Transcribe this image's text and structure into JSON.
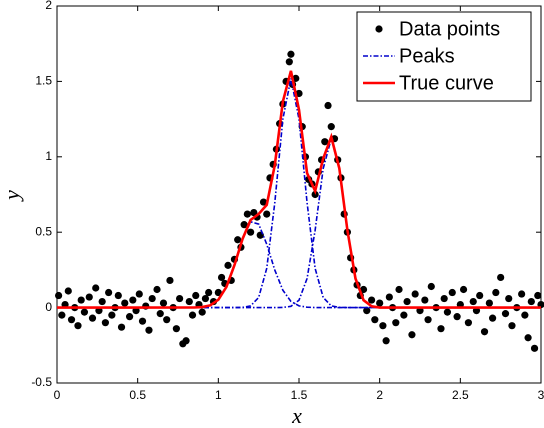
{
  "chart_data": {
    "type": "scatter",
    "xlabel": "x",
    "ylabel": "y",
    "xlim": [
      0,
      3
    ],
    "xticks": [
      0,
      0.5,
      1,
      1.5,
      2,
      2.5,
      3
    ],
    "ylim": [
      -0.5,
      2
    ],
    "yticks": [
      -0.5,
      0,
      0.5,
      1,
      1.5,
      2
    ],
    "legend": "upper right",
    "series": [
      {
        "name": "Data points",
        "color": "#000000",
        "style": "markers",
        "x": [
          0.01,
          0.03,
          0.05,
          0.07,
          0.09,
          0.11,
          0.13,
          0.15,
          0.17,
          0.2,
          0.22,
          0.24,
          0.26,
          0.28,
          0.3,
          0.32,
          0.34,
          0.36,
          0.38,
          0.4,
          0.42,
          0.45,
          0.47,
          0.49,
          0.51,
          0.53,
          0.55,
          0.57,
          0.59,
          0.62,
          0.64,
          0.66,
          0.68,
          0.7,
          0.72,
          0.74,
          0.76,
          0.78,
          0.8,
          0.82,
          0.84,
          0.86,
          0.88,
          0.9,
          0.92,
          0.94,
          0.97,
          1.0,
          1.02,
          1.04,
          1.06,
          1.08,
          1.1,
          1.12,
          1.14,
          1.16,
          1.18,
          1.2,
          1.22,
          1.24,
          1.26,
          1.28,
          1.3,
          1.32,
          1.34,
          1.36,
          1.38,
          1.4,
          1.42,
          1.44,
          1.45,
          1.46,
          1.48,
          1.5,
          1.52,
          1.54,
          1.56,
          1.58,
          1.6,
          1.62,
          1.64,
          1.66,
          1.68,
          1.7,
          1.72,
          1.74,
          1.76,
          1.78,
          1.8,
          1.82,
          1.84,
          1.86,
          1.88,
          1.9,
          1.92,
          1.95,
          1.97,
          2.0,
          2.02,
          2.04,
          2.06,
          2.08,
          2.1,
          2.12,
          2.15,
          2.17,
          2.2,
          2.22,
          2.25,
          2.28,
          2.3,
          2.32,
          2.35,
          2.38,
          2.4,
          2.42,
          2.45,
          2.48,
          2.5,
          2.52,
          2.55,
          2.58,
          2.6,
          2.62,
          2.65,
          2.68,
          2.7,
          2.72,
          2.75,
          2.78,
          2.8,
          2.82,
          2.85,
          2.88,
          2.9,
          2.92,
          2.94,
          2.96,
          2.98,
          3.0
        ],
        "values": [
          0.08,
          -0.05,
          0.02,
          0.11,
          -0.08,
          0.0,
          -0.12,
          0.05,
          -0.03,
          0.07,
          -0.07,
          0.13,
          -0.02,
          0.04,
          -0.1,
          0.1,
          -0.05,
          0.0,
          0.08,
          -0.13,
          0.03,
          -0.06,
          0.05,
          -0.02,
          0.09,
          -0.09,
          0.01,
          -0.15,
          0.06,
          0.12,
          -0.04,
          0.03,
          -0.08,
          0.18,
          0.0,
          -0.14,
          0.06,
          -0.24,
          -0.22,
          0.04,
          -0.05,
          0.08,
          0.02,
          -0.03,
          0.06,
          0.1,
          0.04,
          0.1,
          0.2,
          0.16,
          0.28,
          0.18,
          0.32,
          0.45,
          0.4,
          0.55,
          0.62,
          0.5,
          0.63,
          0.6,
          0.48,
          0.7,
          0.62,
          0.86,
          0.95,
          1.05,
          1.22,
          1.35,
          1.5,
          1.63,
          1.68,
          1.48,
          1.52,
          1.42,
          1.2,
          1.0,
          0.85,
          0.82,
          0.75,
          0.9,
          0.98,
          1.1,
          1.34,
          1.2,
          1.12,
          0.98,
          0.86,
          0.62,
          0.5,
          0.33,
          0.25,
          0.15,
          0.08,
          0.12,
          -0.02,
          0.05,
          -0.08,
          0.03,
          -0.12,
          -0.22,
          0.07,
          0.0,
          -0.1,
          0.12,
          -0.05,
          0.04,
          -0.18,
          0.09,
          -0.02,
          0.05,
          -0.08,
          0.14,
          0.0,
          -0.14,
          0.06,
          -0.03,
          0.1,
          -0.06,
          0.02,
          0.12,
          -0.1,
          0.04,
          -0.02,
          0.08,
          -0.16,
          0.03,
          -0.07,
          0.1,
          0.2,
          -0.04,
          0.06,
          -0.12,
          0.0,
          0.09,
          -0.05,
          -0.2,
          0.04,
          -0.27,
          0.08,
          0.02
        ]
      },
      {
        "name": "Peaks",
        "color": "#0000cc",
        "style": "dashdot",
        "x": [
          0,
          0.85,
          0.9,
          0.95,
          1.0,
          1.05,
          1.1,
          1.15,
          1.2,
          1.25,
          1.3,
          1.35,
          1.4,
          1.45,
          1.5,
          1.55,
          1.6,
          1.65,
          1.7,
          1.75,
          1.8,
          1.85,
          1.9,
          1.95,
          2.0,
          3
        ],
        "values": [
          [
            0,
            0.0006,
            0.0035,
            0.015,
            0.052,
            0.137,
            0.282,
            0.454,
            0.569,
            0.554,
            0.42,
            0.249,
            0.115,
            0.041,
            0.0115,
            0.0025,
            0.0004,
            0,
            0,
            0,
            0,
            0,
            0,
            0,
            0,
            0
          ],
          [
            0,
            0,
            0,
            0,
            0,
            0,
            0.0001,
            0.0013,
            0.0115,
            0.067,
            0.26,
            0.696,
            1.25,
            1.52,
            1.25,
            0.696,
            0.26,
            0.067,
            0.0115,
            0.0013,
            0.0001,
            0,
            0,
            0,
            0,
            0
          ],
          [
            0,
            0,
            0,
            0,
            0,
            0,
            0,
            0,
            0,
            0,
            0,
            0,
            0.001,
            0.0085,
            0.049,
            0.193,
            0.513,
            0.922,
            1.12,
            0.922,
            0.513,
            0.193,
            0.049,
            0.0085,
            0.0001,
            0
          ]
        ]
      },
      {
        "name": "True curve",
        "color": "#ff0000",
        "style": "solid",
        "x": [
          0,
          0.85,
          0.9,
          0.95,
          1.0,
          1.05,
          1.1,
          1.15,
          1.2,
          1.25,
          1.3,
          1.35,
          1.4,
          1.45,
          1.5,
          1.55,
          1.6,
          1.65,
          1.7,
          1.75,
          1.8,
          1.85,
          1.9,
          1.95,
          2.0,
          3
        ],
        "values": [
          0,
          0.0006,
          0.0035,
          0.015,
          0.052,
          0.137,
          0.282,
          0.455,
          0.581,
          0.621,
          0.681,
          0.945,
          1.366,
          1.57,
          1.311,
          0.892,
          0.773,
          0.989,
          1.132,
          0.923,
          0.513,
          0.193,
          0.049,
          0.0085,
          0.0001,
          0
        ]
      }
    ]
  }
}
